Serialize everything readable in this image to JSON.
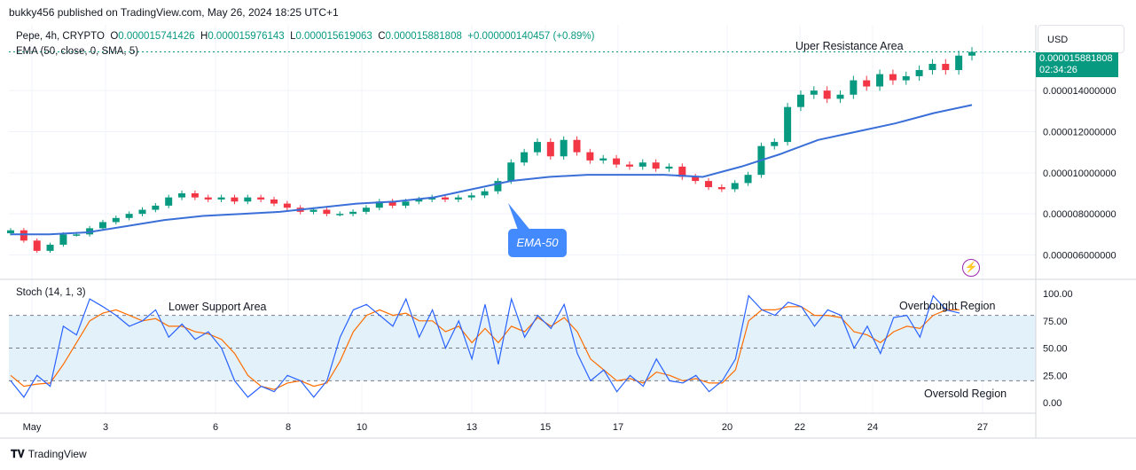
{
  "header": {
    "publisher_line": "bukky456 published on TradingView.com, May 26, 2024 18:25 UTC+1"
  },
  "legend": {
    "symbol": "Pepe, 4h, CRYPTO",
    "open_label": "O",
    "open": "0.000015741426",
    "high_label": "H",
    "high": "0.000015976143",
    "low_label": "L",
    "low": "0.000015619063",
    "close_label": "C",
    "close": "0.000015881808",
    "change": "+0.000000140457 (+0.89%)",
    "ema_line": "EMA (50, close, 0, SMA, 5)",
    "stoch_line": "Stoch (14, 1, 3)"
  },
  "price_scale": {
    "currency": "USD",
    "last_price": "0.000015881808",
    "countdown": "02:34:26",
    "ticks": [
      "0.000014000000",
      "0.000012000000",
      "0.000010000000",
      "0.000008000000",
      "0.000006000000"
    ]
  },
  "stoch_scale": {
    "ticks": [
      "100.00",
      "75.00",
      "50.00",
      "25.00",
      "0.00"
    ]
  },
  "time_axis": {
    "ticks": [
      "May",
      "3",
      "6",
      "8",
      "10",
      "13",
      "15",
      "17",
      "20",
      "22",
      "24",
      "27"
    ]
  },
  "annotations": {
    "upper_resistance": "Uper Resistance Area",
    "ema_callout": "EMA-50",
    "lower_support": "Lower Support Area",
    "overbought": "Overbought Region",
    "oversold": "Oversold Region"
  },
  "footer": {
    "brand": "TradingView"
  },
  "colors": {
    "up": "#089981",
    "down": "#f23645",
    "ema": "#3a6fd8",
    "stoch_k": "#2962ff",
    "stoch_d": "#ff6d00",
    "band": "#e3f1fb"
  },
  "chart_data": [
    {
      "type": "candlestick",
      "title": "Pepe, 4h, CRYPTO",
      "ylim": [
        4.9e-06,
        1.72e-05
      ],
      "x_start": "May 1, 2024",
      "last_close": 1.5881808e-05,
      "close": [
        7.2e-06,
        6.7e-06,
        6.2e-06,
        6.5e-06,
        7e-06,
        7e-06,
        7.3e-06,
        7.6e-06,
        7.8e-06,
        8e-06,
        8.2e-06,
        8.4e-06,
        8.8e-06,
        9e-06,
        8.8e-06,
        8.7e-06,
        8.8e-06,
        8.6e-06,
        8.8e-06,
        8.7e-06,
        8.5e-06,
        8.3e-06,
        8.1e-06,
        8.2e-06,
        8e-06,
        8e-06,
        8.1e-06,
        8.3e-06,
        8.6e-06,
        8.4e-06,
        8.6e-06,
        8.7e-06,
        8.8e-06,
        8.7e-06,
        8.8e-06,
        8.9e-06,
        9.1e-06,
        9.6e-06,
        1.05e-05,
        1.1e-05,
        1.15e-05,
        1.08e-05,
        1.16e-05,
        1.1e-05,
        1.06e-05,
        1.07e-05,
        1.04e-05,
        1.03e-05,
        1.05e-05,
        1.02e-05,
        1.03e-05,
        9.8e-06,
        9.6e-06,
        9.3e-06,
        9.2e-06,
        9.5e-06,
        9.9e-06,
        1.13e-05,
        1.15e-05,
        1.32e-05,
        1.38e-05,
        1.4e-05,
        1.36e-05,
        1.38e-05,
        1.45e-05,
        1.42e-05,
        1.48e-05,
        1.45e-05,
        1.47e-05,
        1.5e-05,
        1.53e-05,
        1.5e-05,
        1.57e-05,
        1.588e-05
      ]
    },
    {
      "type": "line",
      "title": "EMA (50, close, 0, SMA, 5)",
      "ylim": [
        4.9e-06,
        1.72e-05
      ],
      "values": [
        7e-06,
        7e-06,
        7.1e-06,
        7.4e-06,
        7.7e-06,
        7.9e-06,
        8e-06,
        8.1e-06,
        8.3e-06,
        8.5e-06,
        8.6e-06,
        8.8e-06,
        9.2e-06,
        9.6e-06,
        9.8e-06,
        9.9e-06,
        9.9e-06,
        9.9e-06,
        9.8e-06,
        1.03e-05,
        1.09e-05,
        1.16e-05,
        1.2e-05,
        1.24e-05,
        1.29e-05,
        1.33e-05
      ]
    },
    {
      "type": "line",
      "title": "Stoch (14, 1, 3)",
      "ylim": [
        0,
        100
      ],
      "series": [
        {
          "values": [
            20,
            5,
            25,
            15,
            70,
            62,
            95,
            88,
            80,
            70,
            75,
            85,
            60,
            72,
            58,
            65,
            50,
            20,
            5,
            15,
            10,
            25,
            20,
            5,
            20,
            60,
            85,
            90,
            80,
            70,
            95,
            60,
            85,
            50,
            75,
            40,
            90,
            35,
            95,
            60,
            80,
            68,
            90,
            45,
            20,
            30,
            10,
            25,
            15,
            40,
            20,
            18,
            25,
            10,
            20,
            40,
            98,
            85,
            80,
            92,
            88,
            70,
            85,
            80,
            50,
            70,
            45,
            78,
            80,
            60,
            98,
            85,
            82
          ]
        },
        {
          "values": [
            25,
            15,
            17,
            18,
            35,
            55,
            75,
            82,
            85,
            80,
            75,
            77,
            70,
            70,
            65,
            63,
            58,
            45,
            25,
            15,
            12,
            18,
            20,
            15,
            18,
            38,
            65,
            80,
            85,
            80,
            82,
            75,
            75,
            65,
            70,
            55,
            68,
            55,
            70,
            65,
            78,
            70,
            78,
            65,
            40,
            30,
            20,
            22,
            18,
            28,
            25,
            20,
            22,
            18,
            18,
            30,
            75,
            85,
            85,
            88,
            88,
            80,
            80,
            78,
            65,
            62,
            55,
            65,
            70,
            68,
            80,
            85,
            85
          ]
        }
      ],
      "overbought": 80,
      "oversold": 20
    }
  ]
}
